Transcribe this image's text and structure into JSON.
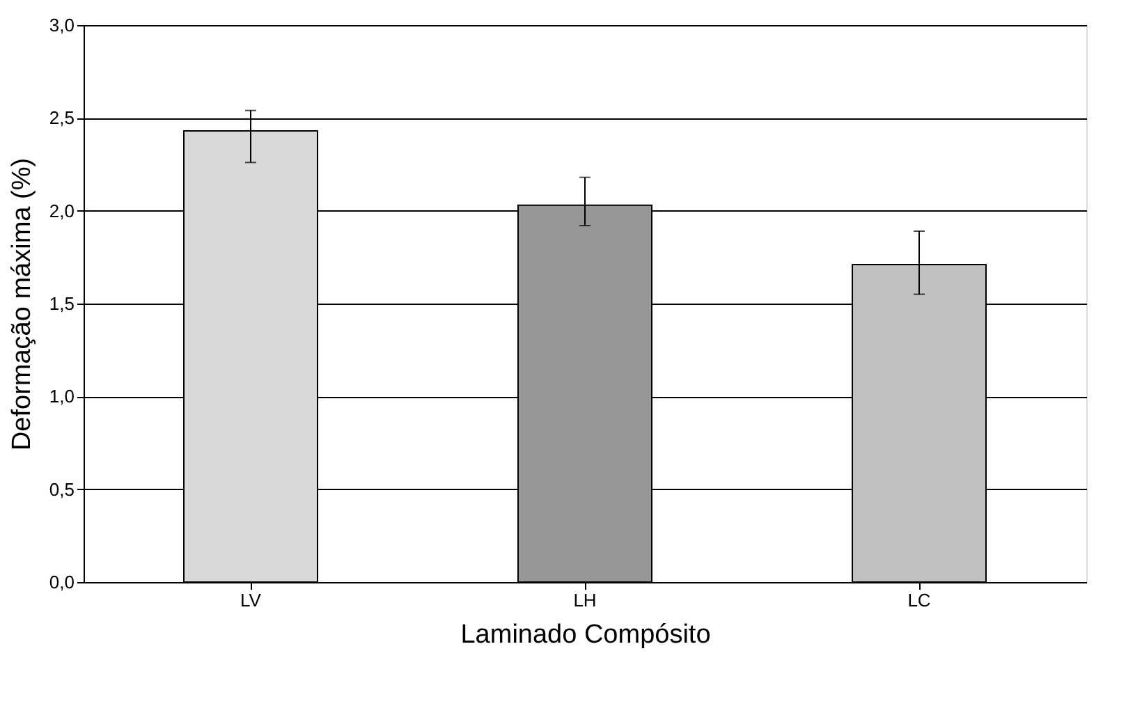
{
  "chart_data": {
    "type": "bar",
    "xlabel": "Laminado Compósito",
    "ylabel": "Deformação máxima (%)",
    "categories": [
      "LV",
      "LH",
      "LC"
    ],
    "values": [
      2.43,
      2.03,
      1.71
    ],
    "colors": [
      "#d9d9d9",
      "#969696",
      "#c0c0c0"
    ],
    "errors": [
      [
        2.26,
        2.54
      ],
      [
        1.92,
        2.18
      ],
      [
        1.55,
        1.89
      ]
    ],
    "ylim": [
      0,
      3.0
    ],
    "yticks": [
      {
        "value": 0,
        "label": "0,0"
      },
      {
        "value": 0.5,
        "label": "0,5"
      },
      {
        "value": 1.0,
        "label": "1,0"
      },
      {
        "value": 1.5,
        "label": "1,5"
      },
      {
        "value": 2.0,
        "label": "2,0"
      },
      {
        "value": 2.5,
        "label": "2,5"
      },
      {
        "value": 3.0,
        "label": "3,0"
      }
    ],
    "grid": "y"
  }
}
